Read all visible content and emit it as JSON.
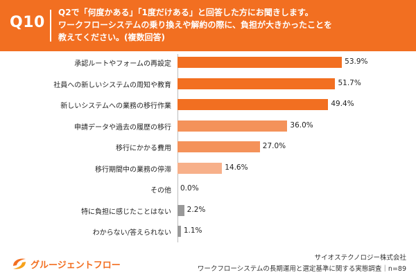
{
  "header": {
    "question_number": "Q10",
    "question_lines": [
      "Q2で「何度かある」「1度だけある」と回答した方にお聞きします。",
      "ワークフローシステムの乗り換えや解約の際に、負担が大きかったことを",
      "教えてください。(複数回答)"
    ],
    "accent_color": "#f26f21"
  },
  "chart_data": {
    "type": "bar",
    "orientation": "horizontal",
    "categories": [
      "承認ルートやフォームの再設定",
      "社員への新しいシステムの周知や教育",
      "新しいシステムへの業務の移行作業",
      "申請データや過去の履歴の移行",
      "移行にかかる費用",
      "移行期間中の業務の停滞",
      "その他",
      "特に負担に感じたことはない",
      "わからない/答えられない"
    ],
    "values": [
      53.9,
      51.7,
      49.4,
      36.0,
      27.0,
      14.6,
      0.0,
      2.2,
      1.1
    ],
    "value_labels": [
      "53.9%",
      "51.7%",
      "49.4%",
      "36.0%",
      "27.0%",
      "14.6%",
      "0.0%",
      "2.2%",
      "1.1%"
    ],
    "colors": [
      "#f26f21",
      "#f26f21",
      "#f26f21",
      "#f4925a",
      "#f4925a",
      "#f7b08a",
      "#f7b08a",
      "#999999",
      "#999999"
    ],
    "xlim": [
      0,
      55
    ],
    "grid": false,
    "legend": "none"
  },
  "footer": {
    "brand": "グルージェントフロー",
    "company": "サイオステクノロジー株式会社",
    "survey": "ワークフローシステムの長期運用と選定基準に関する実態調査｜n=89"
  }
}
